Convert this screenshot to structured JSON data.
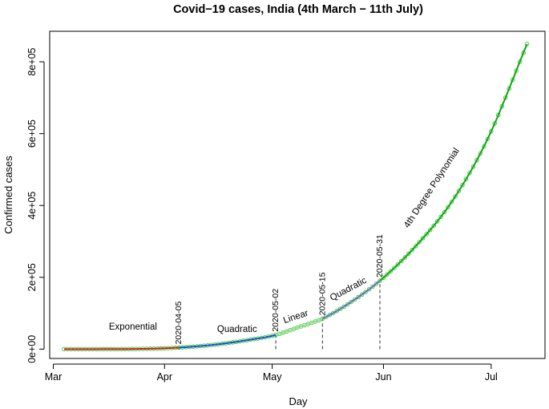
{
  "chart_data": {
    "type": "line",
    "title": "Covid−19 cases, India (4th March − 11th July)",
    "xlabel": "Day",
    "ylabel": "Confirmed cases",
    "x_ticks": [
      "Mar",
      "Apr",
      "May",
      "Jun",
      "Jul"
    ],
    "y_ticks": [
      "0e+00",
      "2e+05",
      "4e+05",
      "6e+05",
      "8e+05"
    ],
    "xlim": [
      "2020-02-29",
      "2020-07-16"
    ],
    "ylim": [
      -26000,
      885000
    ],
    "grid": false,
    "x": [
      "2020-03-04",
      "2020-03-15",
      "2020-03-25",
      "2020-04-05",
      "2020-04-15",
      "2020-04-25",
      "2020-05-02",
      "2020-05-08",
      "2020-05-15",
      "2020-05-22",
      "2020-05-31",
      "2020-06-10",
      "2020-06-20",
      "2020-06-30",
      "2020-07-11"
    ],
    "series": [
      {
        "values": [
          28,
          110,
          650,
          4300,
          12500,
          26500,
          39500,
          60000,
          85000,
          125000,
          190500,
          287000,
          410000,
          585000,
          849500
        ]
      }
    ],
    "segments": [
      {
        "label": "Exponential",
        "start": "2020-03-04",
        "end": "2020-04-05",
        "color": "#cc2222"
      },
      {
        "label": "Quadratic",
        "start": "2020-04-05",
        "end": "2020-05-02",
        "color": "#1f4fd0"
      },
      {
        "label": "Linear",
        "start": "2020-05-02",
        "end": "2020-05-15",
        "color": "#9fd99f"
      },
      {
        "label": "Quadratic",
        "start": "2020-05-15",
        "end": "2020-05-31",
        "color": "#6b6bbf"
      },
      {
        "label": "4th Degree Polynomial",
        "start": "2020-05-31",
        "end": "2020-07-11",
        "color": "#11a311"
      }
    ],
    "breakpoints": [
      "2020-04-05",
      "2020-05-02",
      "2020-05-15",
      "2020-05-31"
    ],
    "point_color": "#33cc33"
  }
}
